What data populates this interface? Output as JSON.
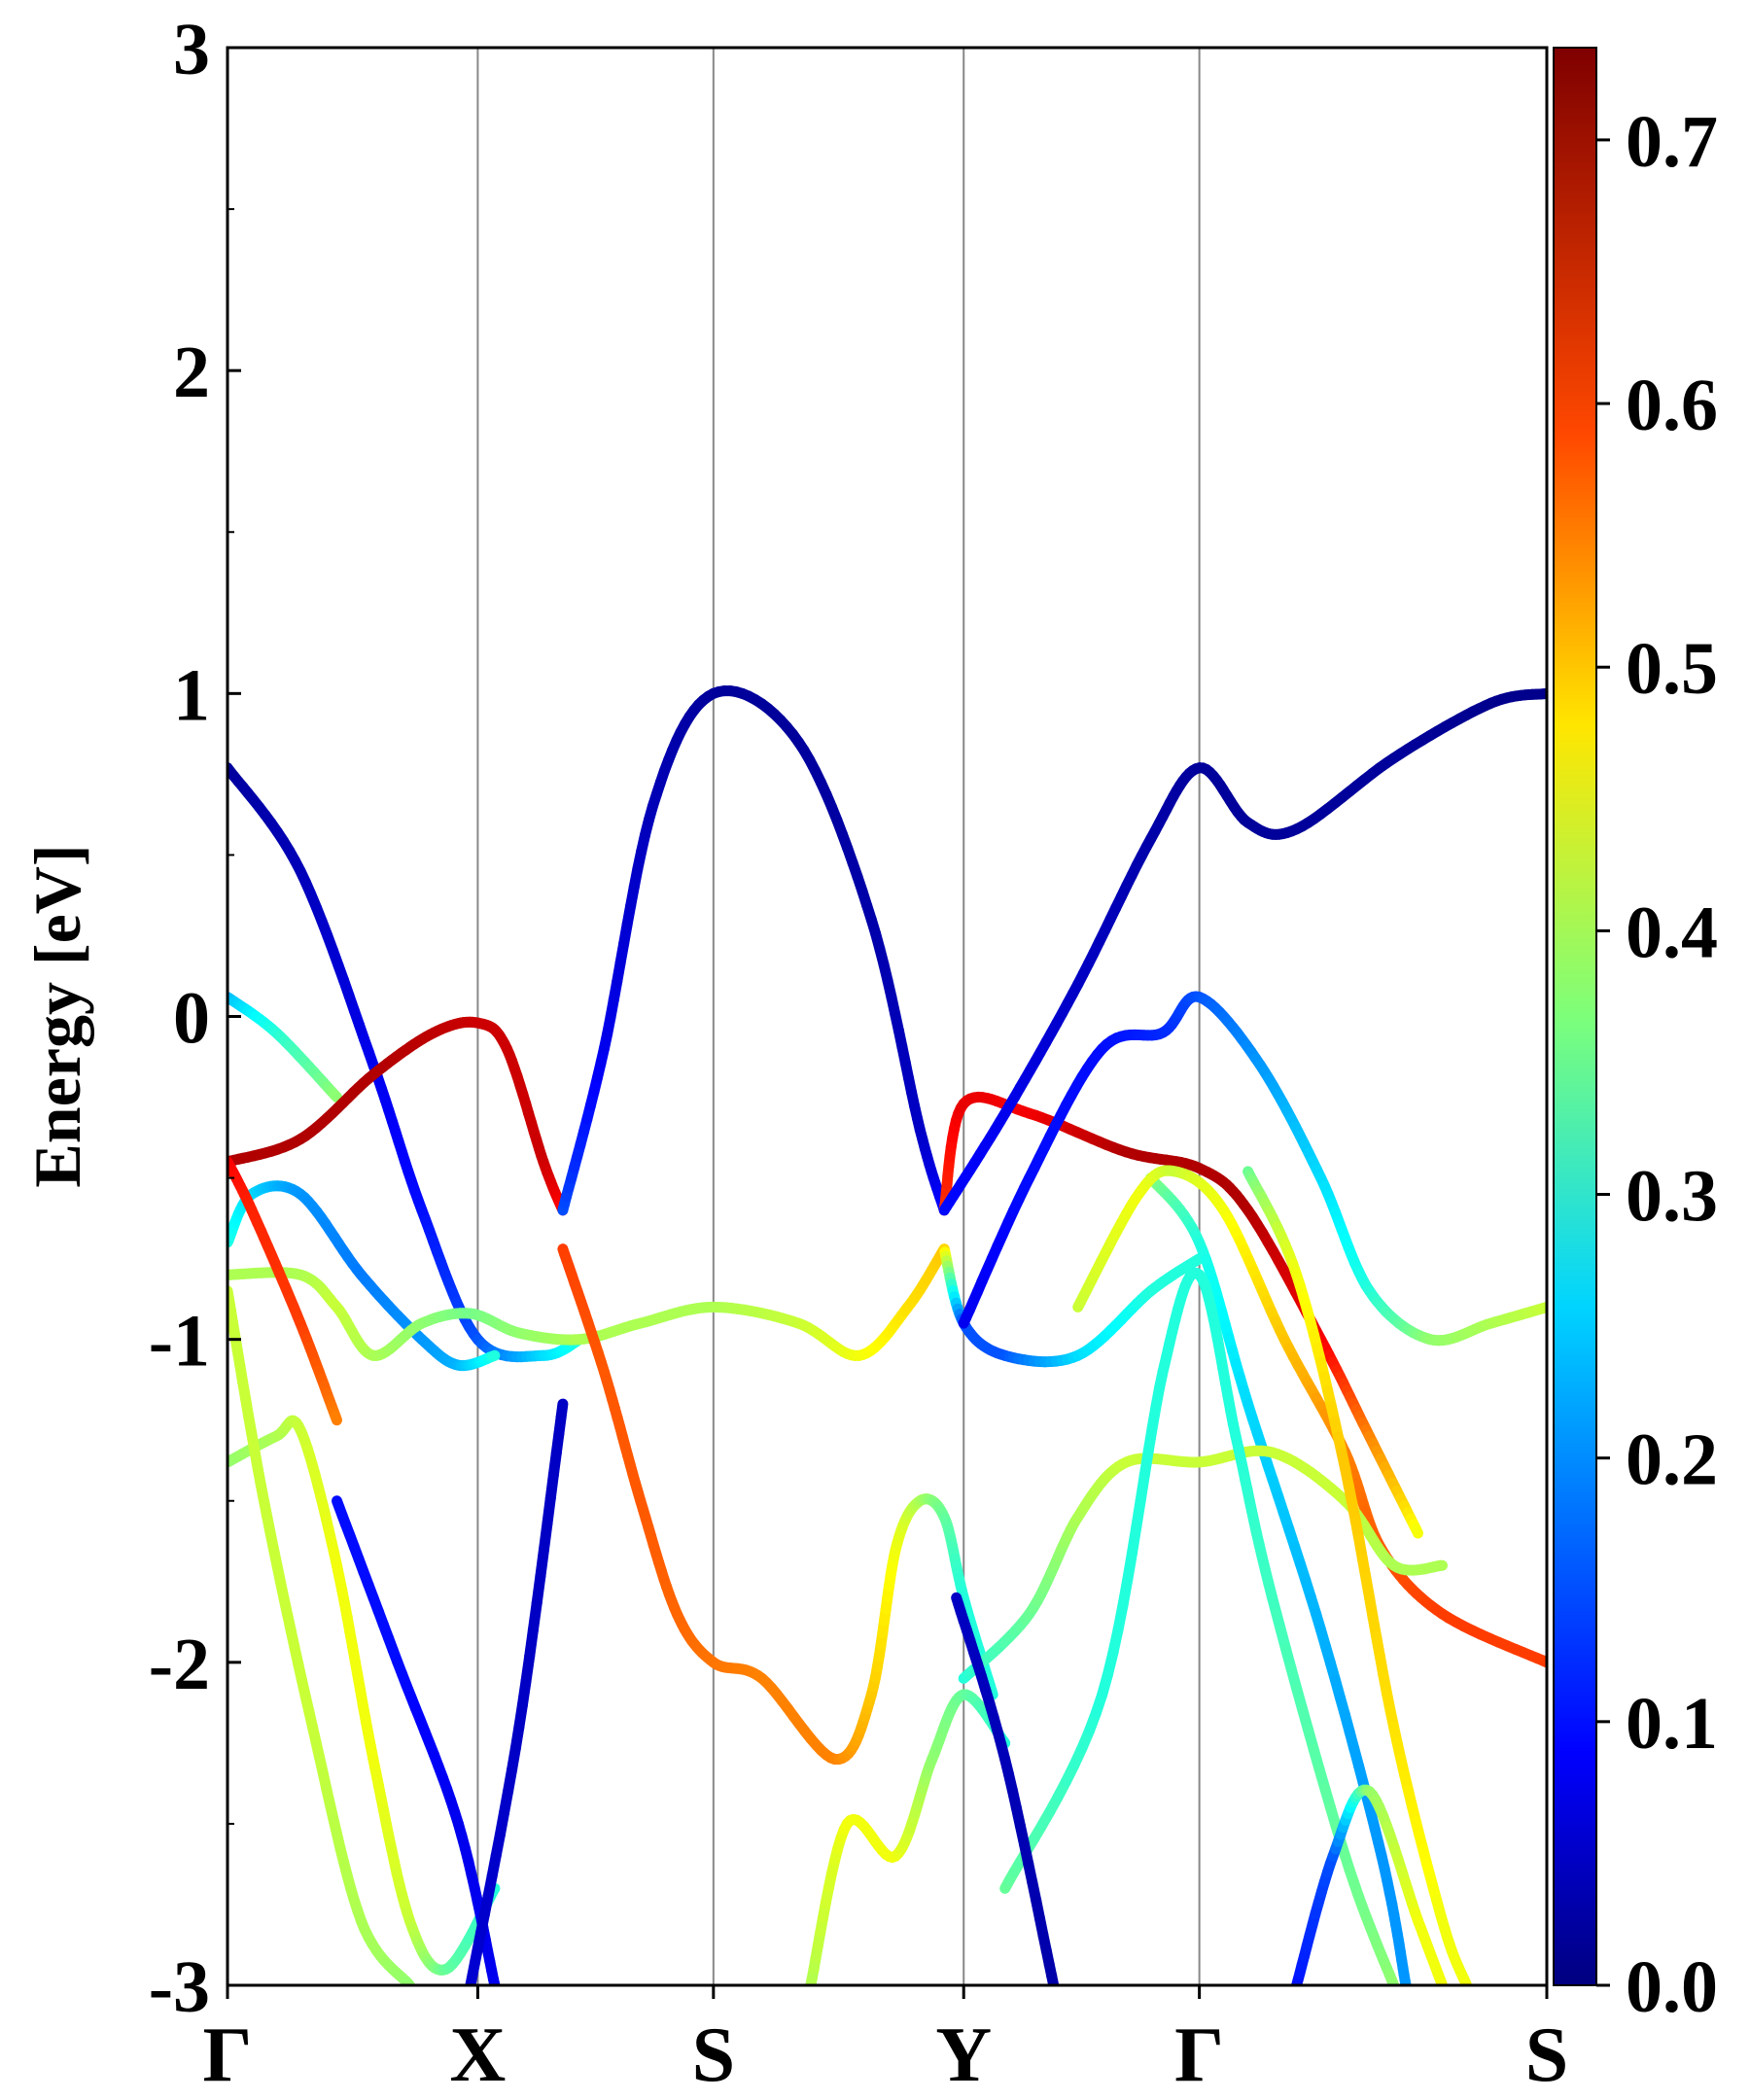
{
  "chart_data": {
    "type": "line",
    "title": "",
    "xlabel": "",
    "ylabel": "Energy [eV]",
    "ylim": [
      -3,
      3
    ],
    "xlim": [
      0,
      5.43
    ],
    "yticks": [
      3,
      2,
      1,
      0,
      -1,
      -2,
      -3
    ],
    "ytick_labels": [
      "3",
      "2",
      "1",
      "0",
      "-1",
      "-2",
      "-3"
    ],
    "high_symmetry_points": [
      {
        "label": "Γ",
        "k": 0.0
      },
      {
        "label": "X",
        "k": 1.03
      },
      {
        "label": "S",
        "k": 2.0
      },
      {
        "label": "Y",
        "k": 3.03
      },
      {
        "label": "Γ",
        "k": 4.0
      },
      {
        "label": "S",
        "k": 5.43
      }
    ],
    "colorbar": {
      "min": 0.0,
      "max": 0.735,
      "ticks": [
        0.0,
        0.1,
        0.2,
        0.3,
        0.4,
        0.5,
        0.6,
        0.7
      ],
      "tick_labels": [
        "0.0",
        "0.1",
        "0.2",
        "0.3",
        "0.4",
        "0.5",
        "0.6",
        "0.7"
      ],
      "colormap": "jet"
    },
    "series": [
      {
        "name": "band-1",
        "points": [
          [
            0,
            0.77,
            0.02
          ],
          [
            0.3,
            0.45,
            0.04
          ],
          [
            0.6,
            -0.15,
            0.08
          ],
          [
            0.8,
            -0.6,
            0.1
          ],
          [
            1.03,
            -1.0,
            0.15
          ],
          [
            1.3,
            -1.05,
            0.25
          ],
          [
            1.45,
            -1.0,
            0.3
          ]
        ]
      },
      {
        "name": "band-2",
        "points": [
          [
            0,
            0.06,
            0.22
          ],
          [
            0.2,
            -0.05,
            0.3
          ],
          [
            0.45,
            -0.25,
            0.38
          ]
        ]
      },
      {
        "name": "band-3",
        "points": [
          [
            0,
            -0.45,
            0.7
          ],
          [
            0.3,
            -0.38,
            0.7
          ],
          [
            0.6,
            -0.18,
            0.7
          ],
          [
            0.85,
            -0.05,
            0.69
          ],
          [
            1.03,
            -0.02,
            0.68
          ],
          [
            1.15,
            -0.1,
            0.68
          ],
          [
            1.3,
            -0.45,
            0.68
          ],
          [
            1.38,
            -0.6,
            0.64
          ]
        ]
      },
      {
        "name": "band-4",
        "points": [
          [
            1.38,
            -0.6,
            0.15
          ],
          [
            1.55,
            -0.1,
            0.08
          ],
          [
            1.75,
            0.65,
            0.04
          ],
          [
            2.0,
            1.0,
            0.02
          ],
          [
            2.35,
            0.85,
            0.02
          ],
          [
            2.65,
            0.3,
            0.03
          ],
          [
            2.85,
            -0.35,
            0.05
          ],
          [
            2.95,
            -0.6,
            0.1
          ]
        ]
      },
      {
        "name": "band-5",
        "points": [
          [
            2.95,
            -0.6,
            0.6
          ],
          [
            3.03,
            -0.27,
            0.66
          ],
          [
            3.3,
            -0.3,
            0.65
          ],
          [
            3.7,
            -0.42,
            0.7
          ],
          [
            4.0,
            -0.47,
            0.7
          ],
          [
            4.2,
            -0.6,
            0.7
          ],
          [
            4.5,
            -1.0,
            0.65
          ],
          [
            4.7,
            -1.3,
            0.55
          ],
          [
            4.9,
            -1.6,
            0.45
          ]
        ]
      },
      {
        "name": "band-6",
        "points": [
          [
            0,
            -0.7,
            0.3
          ],
          [
            0.1,
            -0.55,
            0.25
          ],
          [
            0.3,
            -0.55,
            0.2
          ],
          [
            0.55,
            -0.8,
            0.18
          ],
          [
            0.8,
            -1.0,
            0.2
          ],
          [
            0.95,
            -1.08,
            0.22
          ],
          [
            1.1,
            -1.05,
            0.3
          ]
        ]
      },
      {
        "name": "band-7",
        "points": [
          [
            0,
            -0.8,
            0.4
          ],
          [
            0.3,
            -0.8,
            0.4
          ],
          [
            0.45,
            -0.9,
            0.42
          ],
          [
            0.6,
            -1.05,
            0.4
          ],
          [
            0.8,
            -0.95,
            0.38
          ],
          [
            1.0,
            -0.92,
            0.36
          ],
          [
            1.2,
            -0.98,
            0.38
          ],
          [
            1.45,
            -1.0,
            0.4
          ],
          [
            1.7,
            -0.95,
            0.4
          ],
          [
            2.0,
            -0.9,
            0.4
          ],
          [
            2.35,
            -0.95,
            0.42
          ],
          [
            2.6,
            -1.05,
            0.45
          ],
          [
            2.8,
            -0.9,
            0.48
          ],
          [
            2.95,
            -0.72,
            0.5
          ]
        ]
      },
      {
        "name": "band-8",
        "points": [
          [
            0,
            -0.45,
            0.65
          ],
          [
            0.1,
            -0.6,
            0.62
          ],
          [
            0.3,
            -0.95,
            0.6
          ],
          [
            0.45,
            -1.25,
            0.55
          ]
        ]
      },
      {
        "name": "band-9",
        "points": [
          [
            1.38,
            -0.72,
            0.6
          ],
          [
            1.55,
            -1.1,
            0.58
          ],
          [
            1.7,
            -1.5,
            0.58
          ],
          [
            1.85,
            -1.85,
            0.57
          ],
          [
            2.0,
            -2.0,
            0.56
          ],
          [
            2.2,
            -2.05,
            0.55
          ],
          [
            2.5,
            -2.3,
            0.55
          ],
          [
            2.65,
            -2.1,
            0.5
          ],
          [
            2.75,
            -1.65,
            0.45
          ],
          [
            2.85,
            -1.5,
            0.4
          ],
          [
            2.95,
            -1.55,
            0.35
          ],
          [
            3.03,
            -1.8,
            0.3
          ],
          [
            3.15,
            -2.1,
            0.3
          ]
        ]
      },
      {
        "name": "band-10",
        "points": [
          [
            2.95,
            -0.72,
            0.5
          ],
          [
            3.03,
            -0.95,
            0.15
          ],
          [
            3.2,
            -1.05,
            0.15
          ],
          [
            3.5,
            -1.05,
            0.25
          ],
          [
            3.8,
            -0.85,
            0.3
          ],
          [
            4.0,
            -0.75,
            0.3
          ]
        ]
      },
      {
        "name": "band-11",
        "points": [
          [
            2.95,
            -0.6,
            0.1
          ],
          [
            3.2,
            -0.3,
            0.08
          ],
          [
            3.5,
            0.1,
            0.05
          ],
          [
            3.8,
            0.55,
            0.03
          ],
          [
            4.0,
            0.77,
            0.02
          ],
          [
            4.2,
            0.6,
            0.02
          ],
          [
            4.4,
            0.58,
            0.02
          ],
          [
            4.8,
            0.8,
            0.02
          ],
          [
            5.2,
            0.97,
            0.01
          ],
          [
            5.43,
            1.0,
            0.01
          ]
        ]
      },
      {
        "name": "band-12",
        "points": [
          [
            3.03,
            -0.95,
            0.08
          ],
          [
            3.3,
            -0.5,
            0.1
          ],
          [
            3.6,
            -0.1,
            0.1
          ],
          [
            3.85,
            -0.05,
            0.12
          ],
          [
            4.0,
            0.06,
            0.15
          ],
          [
            4.25,
            -0.15,
            0.2
          ],
          [
            4.5,
            -0.5,
            0.25
          ],
          [
            4.7,
            -0.85,
            0.3
          ],
          [
            4.95,
            -1.0,
            0.38
          ],
          [
            5.2,
            -0.95,
            0.4
          ],
          [
            5.43,
            -0.9,
            0.42
          ]
        ]
      },
      {
        "name": "band-13",
        "points": [
          [
            3.8,
            -0.5,
            0.38
          ],
          [
            4.0,
            -0.7,
            0.3
          ],
          [
            4.2,
            -1.2,
            0.25
          ],
          [
            4.5,
            -1.9,
            0.22
          ],
          [
            4.75,
            -2.6,
            0.2
          ],
          [
            4.85,
            -3.0,
            0.2
          ]
        ]
      },
      {
        "name": "band-14",
        "points": [
          [
            3.5,
            -0.9,
            0.42
          ],
          [
            3.75,
            -0.55,
            0.45
          ],
          [
            3.9,
            -0.48,
            0.42
          ],
          [
            4.1,
            -0.6,
            0.45
          ],
          [
            4.35,
            -1.0,
            0.5
          ],
          [
            4.6,
            -1.35,
            0.55
          ],
          [
            4.75,
            -1.65,
            0.58
          ],
          [
            5.0,
            -1.85,
            0.6
          ],
          [
            5.43,
            -2.0,
            0.6
          ]
        ]
      },
      {
        "name": "band-15",
        "points": [
          [
            3.03,
            -2.05,
            0.3
          ],
          [
            3.3,
            -1.85,
            0.35
          ],
          [
            3.5,
            -1.55,
            0.4
          ],
          [
            3.7,
            -1.38,
            0.42
          ],
          [
            4.0,
            -1.38,
            0.42
          ],
          [
            4.3,
            -1.35,
            0.42
          ],
          [
            4.6,
            -1.5,
            0.42
          ],
          [
            4.8,
            -1.7,
            0.4
          ],
          [
            5.0,
            -1.7,
            0.4
          ]
        ]
      },
      {
        "name": "band-16",
        "points": [
          [
            3.2,
            -2.7,
            0.35
          ],
          [
            3.6,
            -2.1,
            0.3
          ],
          [
            3.85,
            -1.1,
            0.3
          ],
          [
            4.0,
            -0.8,
            0.3
          ],
          [
            4.15,
            -1.3,
            0.3
          ],
          [
            4.3,
            -1.8,
            0.32
          ],
          [
            4.6,
            -2.6,
            0.35
          ],
          [
            4.8,
            -3.0,
            0.38
          ]
        ]
      },
      {
        "name": "band-17",
        "points": [
          [
            4.2,
            -0.48,
            0.35
          ],
          [
            4.4,
            -0.8,
            0.45
          ],
          [
            4.6,
            -1.4,
            0.5
          ],
          [
            4.8,
            -2.2,
            0.48
          ],
          [
            5.0,
            -2.8,
            0.45
          ],
          [
            5.1,
            -3.0,
            0.45
          ]
        ]
      },
      {
        "name": "band-18",
        "points": [
          [
            0,
            -1.38,
            0.38
          ],
          [
            0.2,
            -1.3,
            0.4
          ],
          [
            0.3,
            -1.28,
            0.42
          ],
          [
            0.45,
            -1.7,
            0.45
          ],
          [
            0.6,
            -2.3,
            0.45
          ],
          [
            0.75,
            -2.8,
            0.42
          ],
          [
            0.9,
            -2.95,
            0.35
          ],
          [
            1.1,
            -2.7,
            0.3
          ]
        ]
      },
      {
        "name": "band-19",
        "points": [
          [
            0,
            -0.85,
            0.42
          ],
          [
            0.15,
            -1.5,
            0.42
          ],
          [
            0.35,
            -2.2,
            0.42
          ],
          [
            0.55,
            -2.8,
            0.4
          ],
          [
            0.75,
            -3.0,
            0.38
          ]
        ]
      },
      {
        "name": "band-20",
        "points": [
          [
            0.45,
            -1.5,
            0.1
          ],
          [
            0.7,
            -2.0,
            0.1
          ],
          [
            0.95,
            -2.5,
            0.08
          ],
          [
            1.1,
            -3.0,
            0.08
          ]
        ]
      },
      {
        "name": "band-21",
        "points": [
          [
            1.0,
            -3.0,
            0.06
          ],
          [
            1.2,
            -2.2,
            0.05
          ],
          [
            1.38,
            -1.2,
            0.05
          ]
        ]
      },
      {
        "name": "band-22",
        "points": [
          [
            2.4,
            -3.0,
            0.4
          ],
          [
            2.55,
            -2.5,
            0.45
          ],
          [
            2.75,
            -2.6,
            0.45
          ],
          [
            2.9,
            -2.3,
            0.38
          ],
          [
            3.03,
            -2.1,
            0.35
          ],
          [
            3.2,
            -2.25,
            0.3
          ]
        ]
      },
      {
        "name": "band-23",
        "points": [
          [
            3.0,
            -1.8,
            0.05
          ],
          [
            3.2,
            -2.3,
            0.04
          ],
          [
            3.4,
            -3.0,
            0.03
          ]
        ]
      },
      {
        "name": "band-24",
        "points": [
          [
            4.4,
            -3.0,
            0.1
          ],
          [
            4.55,
            -2.6,
            0.15
          ],
          [
            4.7,
            -2.4,
            0.38
          ],
          [
            4.9,
            -2.8,
            0.45
          ],
          [
            5.0,
            -3.0,
            0.45
          ]
        ]
      }
    ]
  }
}
